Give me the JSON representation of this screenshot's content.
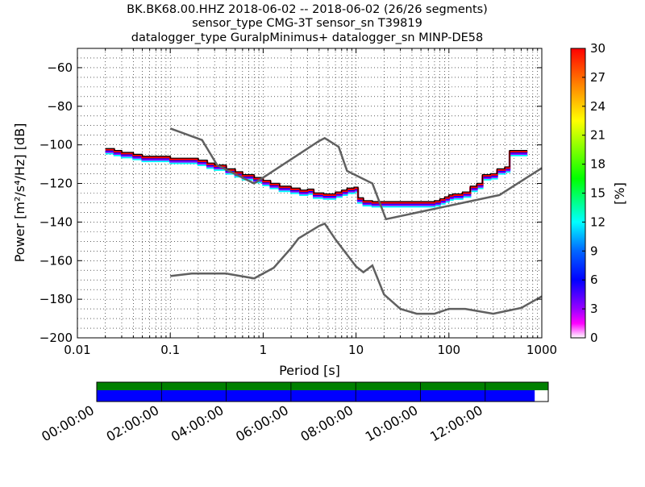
{
  "chart_data": {
    "type": "heatmap",
    "title_lines": [
      "BK.BK68.00.HHZ   2018-06-02 -- 2018-06-02  (26/26 segments)",
      "sensor_type CMG-3T sensor_sn T39819",
      "datalogger_type GuralpMinimus+ datalogger_sn MINP-DE58"
    ],
    "xlabel": "Period [s]",
    "ylabel": "Power [m²/s⁴/Hz] [dB]",
    "x_scale": "log",
    "xlim": [
      0.01,
      1000
    ],
    "ylim": [
      -200,
      -50
    ],
    "x_ticks": [
      "0.01",
      "0.1",
      "1",
      "10",
      "100",
      "1000"
    ],
    "y_ticks": [
      "−60",
      "−80",
      "−100",
      "−120",
      "−140",
      "−160",
      "−180",
      "−200"
    ],
    "grid": "dotted",
    "colorbar": {
      "label": "[%]",
      "ticks": [
        "0",
        "3",
        "6",
        "9",
        "12",
        "15",
        "18",
        "21",
        "24",
        "27",
        "30"
      ],
      "range": [
        0,
        30
      ],
      "colormap": "pqlx"
    },
    "psd_mode": [
      [
        0.02,
        -102.5
      ],
      [
        0.025,
        -103.5
      ],
      [
        0.03,
        -104.5
      ],
      [
        0.04,
        -105.5
      ],
      [
        0.05,
        -106.5
      ],
      [
        0.07,
        -106.5
      ],
      [
        0.1,
        -107.5
      ],
      [
        0.15,
        -107.5
      ],
      [
        0.2,
        -108.5
      ],
      [
        0.25,
        -110
      ],
      [
        0.3,
        -111
      ],
      [
        0.4,
        -113
      ],
      [
        0.5,
        -114.5
      ],
      [
        0.6,
        -116
      ],
      [
        0.8,
        -117.5
      ],
      [
        1.0,
        -119
      ],
      [
        1.2,
        -120.5
      ],
      [
        1.5,
        -122
      ],
      [
        2.0,
        -123
      ],
      [
        2.5,
        -124
      ],
      [
        3.0,
        -123.5
      ],
      [
        3.5,
        -125.5
      ],
      [
        4.5,
        -126
      ],
      [
        6.0,
        -125
      ],
      [
        7.0,
        -124
      ],
      [
        8.0,
        -123
      ],
      [
        9.5,
        -122.5
      ],
      [
        10.5,
        -128
      ],
      [
        12,
        -129.5
      ],
      [
        15,
        -130
      ],
      [
        20,
        -130
      ],
      [
        30,
        -130
      ],
      [
        50,
        -130
      ],
      [
        70,
        -129.5
      ],
      [
        80,
        -128.5
      ],
      [
        90,
        -127.5
      ],
      [
        100,
        -126.5
      ],
      [
        110,
        -126
      ],
      [
        140,
        -125
      ],
      [
        170,
        -122
      ],
      [
        200,
        -120.5
      ],
      [
        230,
        -116
      ],
      [
        280,
        -115.5
      ],
      [
        330,
        -113
      ],
      [
        400,
        -112
      ],
      [
        450,
        -103.5
      ],
      [
        700,
        -103.5
      ]
    ],
    "nhnm": [
      [
        0.1,
        -91.5
      ],
      [
        0.22,
        -97.5
      ],
      [
        0.32,
        -110.5
      ],
      [
        0.8,
        -120
      ],
      [
        4.0,
        -98
      ],
      [
        4.6,
        -96.5
      ],
      [
        6.5,
        -101
      ],
      [
        8.0,
        -113.5
      ],
      [
        15,
        -120
      ],
      [
        21,
        -138.5
      ],
      [
        350,
        -126
      ],
      [
        1000,
        -112
      ]
    ],
    "nlnm": [
      [
        0.1,
        -168
      ],
      [
        0.17,
        -166.7
      ],
      [
        0.4,
        -166.7
      ],
      [
        0.8,
        -169.2
      ],
      [
        1.3,
        -163.7
      ],
      [
        2.0,
        -153.5
      ],
      [
        2.4,
        -148.5
      ],
      [
        4.0,
        -142
      ],
      [
        4.6,
        -140.8
      ],
      [
        6.0,
        -149
      ],
      [
        10,
        -163
      ],
      [
        12,
        -166
      ],
      [
        15,
        -162.5
      ],
      [
        20,
        -177.5
      ],
      [
        30,
        -185
      ],
      [
        45,
        -187.5
      ],
      [
        70,
        -187.5
      ],
      [
        100,
        -185
      ],
      [
        150,
        -185
      ],
      [
        300,
        -187.5
      ],
      [
        600,
        -184.5
      ],
      [
        1000,
        -178.5
      ]
    ]
  },
  "timeline": {
    "ticks": [
      "00:00:00",
      "02:00:00",
      "04:00:00",
      "06:00:00",
      "08:00:00",
      "10:00:00",
      "12:00:00"
    ],
    "colors": {
      "available": "#008000",
      "used": "#0000ff"
    },
    "used_fraction": 0.97
  }
}
